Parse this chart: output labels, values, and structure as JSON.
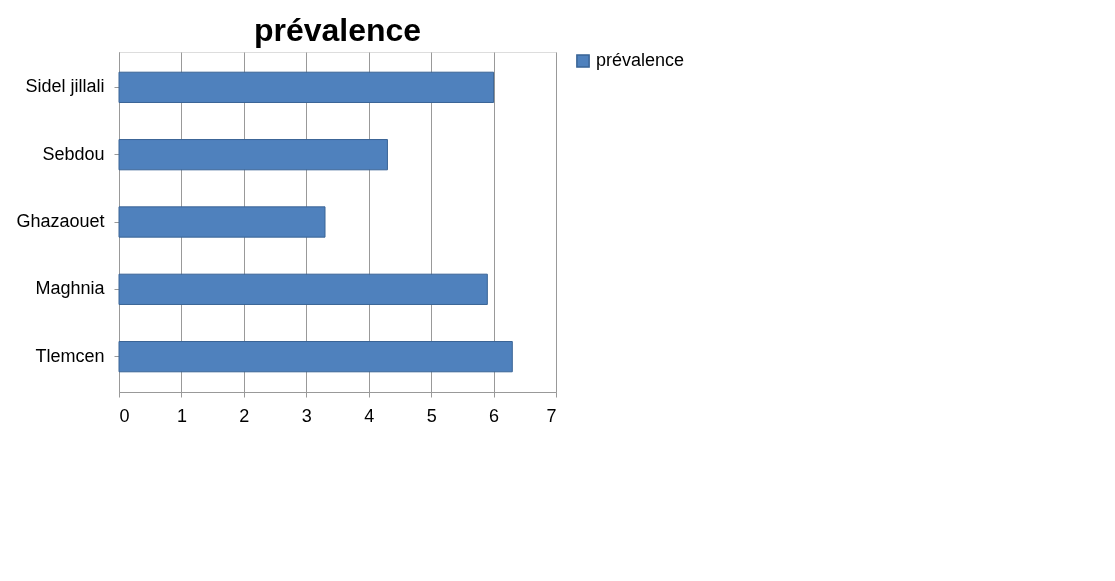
{
  "chart_data": {
    "type": "bar",
    "orientation": "horizontal",
    "title": "prévalence",
    "categories": [
      "Sidel jillali",
      "Sebdou",
      "Ghazaouet",
      "Maghnia",
      "Tlemcen"
    ],
    "series": [
      {
        "name": "prévalence",
        "color": "#4f81bd",
        "values": [
          6.0,
          4.3,
          3.3,
          5.9,
          6.3
        ]
      }
    ],
    "xlim": [
      0,
      7
    ],
    "xticks": [
      0,
      1,
      2,
      3,
      4,
      5,
      6,
      7
    ],
    "grid": "x",
    "legend": "right"
  }
}
